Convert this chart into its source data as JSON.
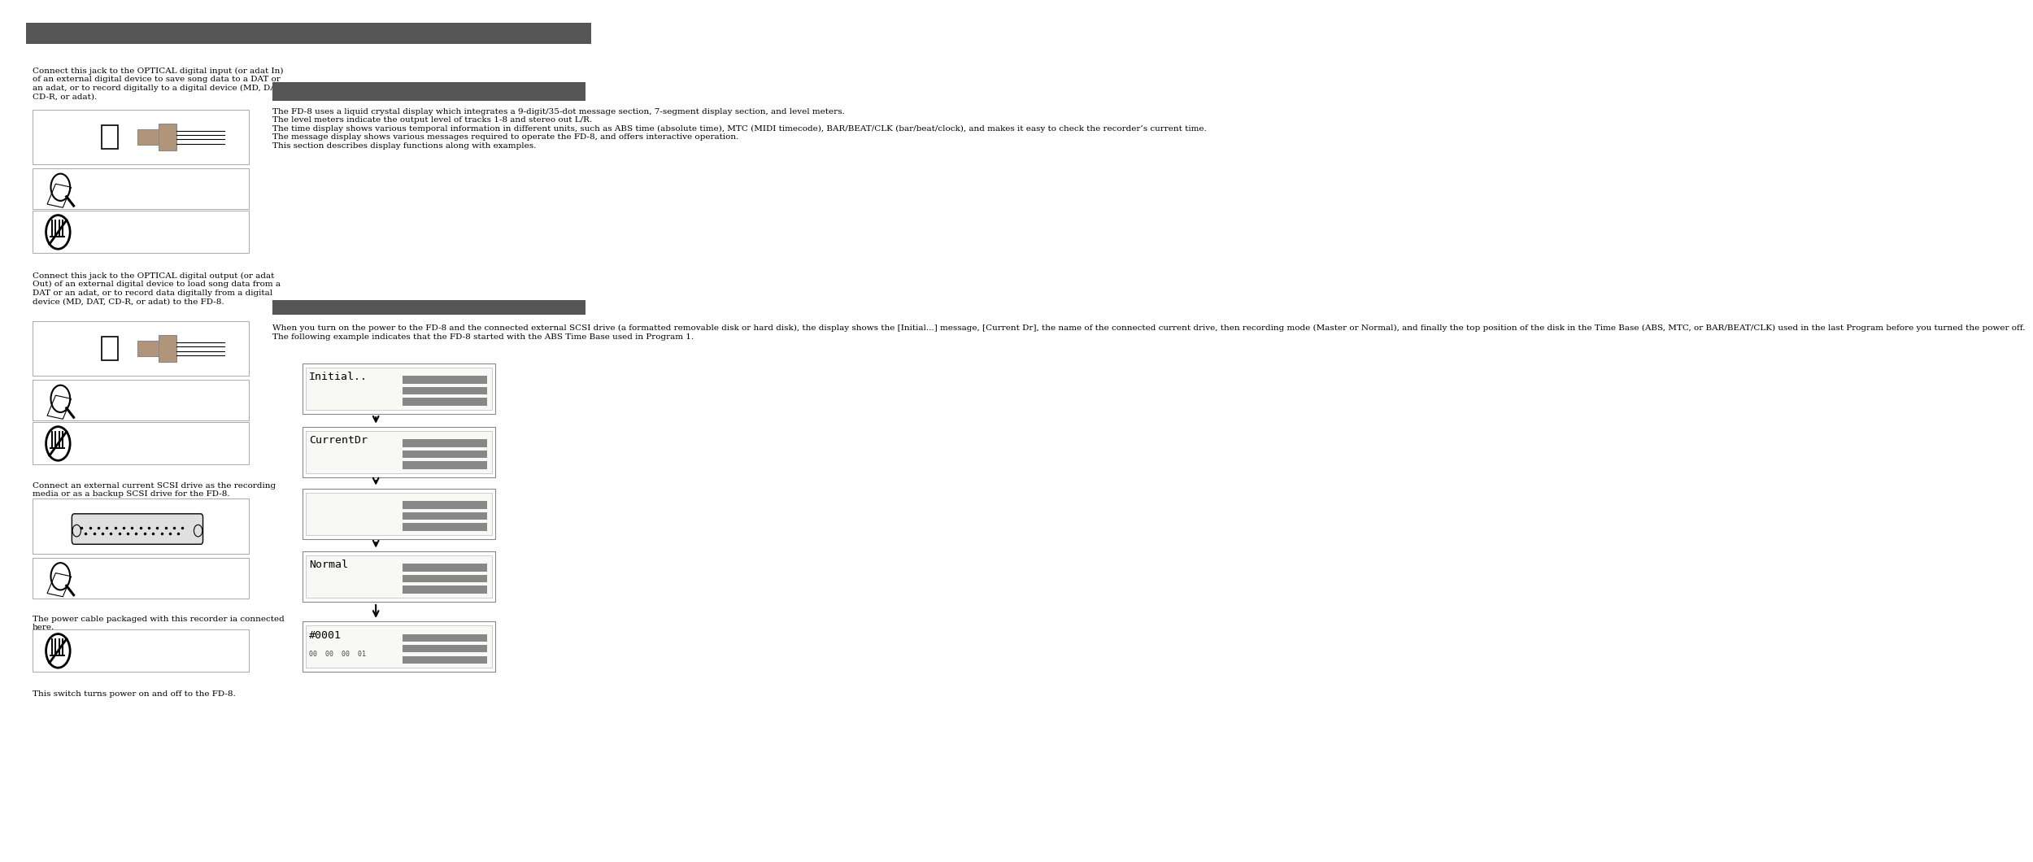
{
  "bg_color": "#ffffff",
  "header_bar_color": "#555555",
  "section_bar_color": "#555555",
  "left_text1": "Connect this jack to the OPTICAL digital input (or adat In)\nof an external digital device to save song data to a DAT or\nan adat, or to record digitally to a digital device (MD, DAT,\nCD-R, or adat).",
  "left_text2": "Connect this jack to the OPTICAL digital output (or adat\nOut) of an external digital device to load song data from a\nDAT or an adat, or to record data digitally from a digital\ndevice (MD, DAT, CD-R, or adat) to the FD-8.",
  "left_text3": "Connect an external current SCSI drive as the recording\nmedia or as a backup SCSI drive for the FD-8.",
  "left_text4": "The power cable packaged with this recorder ia connected\nhere.",
  "left_text5": "This switch turns power on and off to the FD-8.",
  "right_text1": "The FD-8 uses a liquid crystal display which integrates a 9-digit/35-dot message section, 7-segment display section, and level meters.\nThe level meters indicate the output level of tracks 1-8 and stereo out L/R.\nThe time display shows various temporal information in different units, such as ABS time (absolute time), MTC (MIDI timecode), BAR/BEAT/CLK (bar/beat/clock), and makes it easy to check the recorder’s current time.\nThe message display shows various messages required to operate the FD-8, and offers interactive operation.\nThis section describes display functions along with examples.",
  "right_text2": "When you turn on the power to the FD-8 and the connected external SCSI drive (a formatted removable disk or hard disk), the display shows the [Initial...] message, [Current Dr], the name of the connected current drive, then recording mode (Master or Normal), and finally the top position of the disk in the Time Base (ABS, MTC, or BAR/BEAT/CLK) used in the last Program before you turned the power off.\nThe following example indicates that the FD-8 started with the ABS Time Base used in Program 1.",
  "lcd_texts": [
    "Initial..",
    "CurrentDr",
    "",
    "Normal",
    "#0001"
  ],
  "lcd_subtext": "00  00  00  01",
  "font_size_body": 7.5
}
